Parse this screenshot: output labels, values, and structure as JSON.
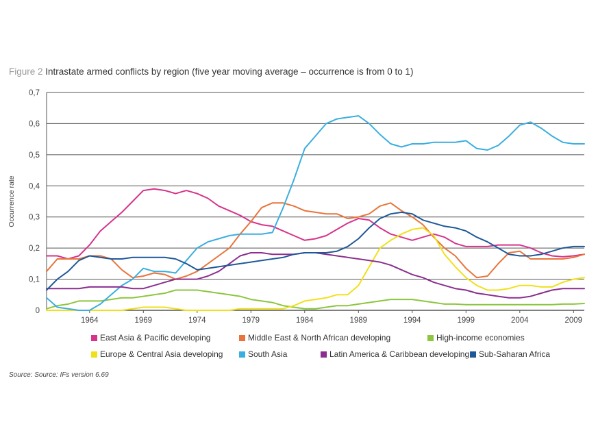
{
  "figure_label": "Figure 2",
  "title_text": "Intrastate armed conflicts by region (five year moving average – occurrence is from 0 to 1)",
  "source": "Source: Source: IFs version 6.69",
  "chart_data": {
    "type": "line",
    "ylabel": "Occurrence rate",
    "xlabel": "",
    "xlim": [
      1960,
      2010
    ],
    "ylim": [
      0,
      0.7
    ],
    "x_ticks": [
      1964,
      1969,
      1974,
      1979,
      1984,
      1989,
      1994,
      1999,
      2004,
      2009
    ],
    "y_ticks": [
      0,
      0.1,
      0.2,
      0.3,
      0.4,
      0.5,
      0.6,
      0.7
    ],
    "y_tick_labels": [
      "0",
      "0,1",
      "0,2",
      "0,3",
      "0,4",
      "0,5",
      "0,6",
      "0,7"
    ],
    "grid": "horizontal",
    "legend_position": "bottom",
    "x": [
      1960,
      1961,
      1962,
      1963,
      1964,
      1965,
      1966,
      1967,
      1968,
      1969,
      1970,
      1971,
      1972,
      1973,
      1974,
      1975,
      1976,
      1977,
      1978,
      1979,
      1980,
      1981,
      1982,
      1983,
      1984,
      1985,
      1986,
      1987,
      1988,
      1989,
      1990,
      1991,
      1992,
      1993,
      1994,
      1995,
      1996,
      1997,
      1998,
      1999,
      2000,
      2001,
      2002,
      2003,
      2004,
      2005,
      2006,
      2007,
      2008,
      2009,
      2010
    ],
    "series": [
      {
        "name": "East Asia & Pacific developing",
        "color": "#d6338a",
        "values": [
          0.175,
          0.175,
          0.165,
          0.175,
          0.21,
          0.255,
          0.285,
          0.315,
          0.35,
          0.385,
          0.39,
          0.385,
          0.375,
          0.385,
          0.375,
          0.36,
          0.335,
          0.32,
          0.305,
          0.285,
          0.275,
          0.27,
          0.255,
          0.24,
          0.225,
          0.23,
          0.24,
          0.26,
          0.28,
          0.295,
          0.29,
          0.265,
          0.245,
          0.235,
          0.225,
          0.235,
          0.245,
          0.235,
          0.215,
          0.205,
          0.205,
          0.205,
          0.21,
          0.21,
          0.21,
          0.2,
          0.185,
          0.175,
          0.172,
          0.175,
          0.18
        ]
      },
      {
        "name": "Middle East & North African developing",
        "color": "#e8743b",
        "values": [
          0.125,
          0.165,
          0.165,
          0.165,
          0.175,
          0.175,
          0.165,
          0.13,
          0.105,
          0.11,
          0.12,
          0.115,
          0.1,
          0.11,
          0.125,
          0.15,
          0.175,
          0.2,
          0.245,
          0.285,
          0.33,
          0.345,
          0.345,
          0.335,
          0.32,
          0.315,
          0.31,
          0.31,
          0.295,
          0.3,
          0.31,
          0.335,
          0.345,
          0.32,
          0.3,
          0.275,
          0.235,
          0.2,
          0.175,
          0.135,
          0.105,
          0.11,
          0.15,
          0.185,
          0.19,
          0.165,
          0.165,
          0.165,
          0.165,
          0.17,
          0.18
        ]
      },
      {
        "name": "High-income economies",
        "color": "#8cc63f",
        "values": [
          0.005,
          0.015,
          0.02,
          0.03,
          0.03,
          0.03,
          0.035,
          0.04,
          0.04,
          0.045,
          0.05,
          0.055,
          0.065,
          0.065,
          0.065,
          0.06,
          0.055,
          0.05,
          0.045,
          0.035,
          0.03,
          0.025,
          0.015,
          0.01,
          0.005,
          0.005,
          0.01,
          0.015,
          0.015,
          0.02,
          0.025,
          0.03,
          0.035,
          0.035,
          0.035,
          0.03,
          0.025,
          0.02,
          0.02,
          0.018,
          0.018,
          0.018,
          0.018,
          0.018,
          0.018,
          0.018,
          0.018,
          0.018,
          0.02,
          0.02,
          0.022
        ]
      },
      {
        "name": "Europe & Central Asia developing",
        "color": "#f0e01a",
        "values": [
          0,
          0,
          0,
          0,
          0,
          0,
          0,
          0,
          0.005,
          0.01,
          0.01,
          0.01,
          0.005,
          0,
          0,
          0,
          0,
          0,
          0.005,
          0.005,
          0.005,
          0.005,
          0.005,
          0.015,
          0.03,
          0.035,
          0.04,
          0.05,
          0.05,
          0.08,
          0.14,
          0.2,
          0.225,
          0.245,
          0.26,
          0.265,
          0.24,
          0.18,
          0.14,
          0.105,
          0.08,
          0.065,
          0.065,
          0.07,
          0.08,
          0.08,
          0.075,
          0.075,
          0.09,
          0.1,
          0.105
        ]
      },
      {
        "name": "South Asia",
        "color": "#3aaee0",
        "values": [
          0.04,
          0.01,
          0.005,
          0,
          0,
          0.02,
          0.05,
          0.08,
          0.1,
          0.135,
          0.125,
          0.125,
          0.12,
          0.16,
          0.2,
          0.22,
          0.23,
          0.24,
          0.245,
          0.245,
          0.245,
          0.25,
          0.33,
          0.42,
          0.52,
          0.56,
          0.6,
          0.615,
          0.62,
          0.625,
          0.6,
          0.565,
          0.535,
          0.525,
          0.535,
          0.535,
          0.54,
          0.54,
          0.54,
          0.545,
          0.52,
          0.515,
          0.53,
          0.56,
          0.595,
          0.605,
          0.585,
          0.56,
          0.54,
          0.535,
          0.535
        ]
      },
      {
        "name": "Latin America & Caribbean developing",
        "color": "#8b2e8f",
        "values": [
          0.07,
          0.07,
          0.07,
          0.07,
          0.075,
          0.075,
          0.075,
          0.075,
          0.07,
          0.07,
          0.08,
          0.09,
          0.1,
          0.1,
          0.1,
          0.11,
          0.125,
          0.15,
          0.175,
          0.185,
          0.185,
          0.18,
          0.18,
          0.18,
          0.185,
          0.185,
          0.18,
          0.175,
          0.17,
          0.165,
          0.16,
          0.155,
          0.145,
          0.13,
          0.115,
          0.105,
          0.09,
          0.08,
          0.07,
          0.065,
          0.055,
          0.05,
          0.045,
          0.04,
          0.04,
          0.045,
          0.055,
          0.065,
          0.07,
          0.07,
          0.07
        ]
      },
      {
        "name": "Sub-Saharan Africa",
        "color": "#1f5899",
        "values": [
          0.065,
          0.1,
          0.125,
          0.16,
          0.175,
          0.17,
          0.165,
          0.165,
          0.17,
          0.17,
          0.17,
          0.17,
          0.165,
          0.15,
          0.13,
          0.135,
          0.14,
          0.145,
          0.15,
          0.155,
          0.16,
          0.165,
          0.17,
          0.18,
          0.185,
          0.185,
          0.185,
          0.19,
          0.205,
          0.23,
          0.265,
          0.295,
          0.31,
          0.315,
          0.31,
          0.29,
          0.28,
          0.27,
          0.265,
          0.255,
          0.235,
          0.22,
          0.2,
          0.18,
          0.175,
          0.175,
          0.18,
          0.19,
          0.2,
          0.205,
          0.205
        ]
      }
    ]
  }
}
